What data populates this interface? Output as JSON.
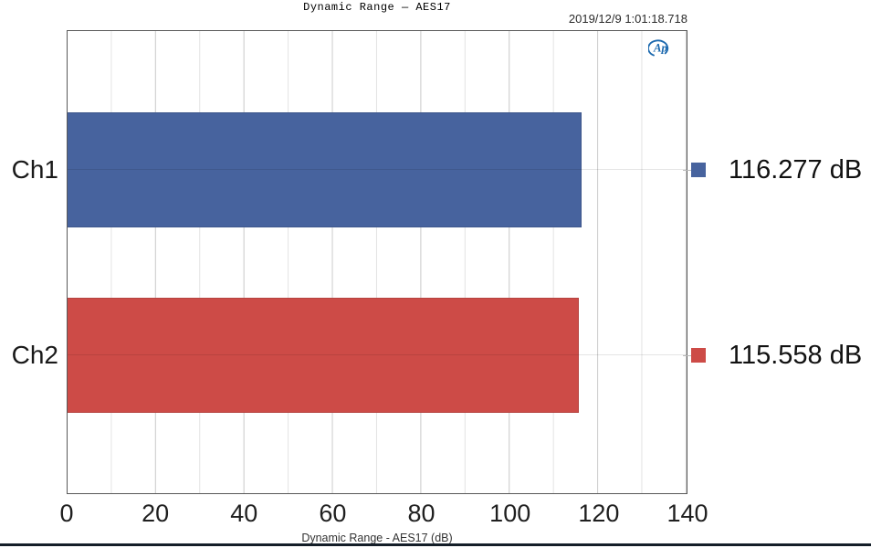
{
  "window": {
    "timestamp": "2019/12/9 1:01:18.718"
  },
  "chart_data": {
    "type": "bar",
    "orientation": "horizontal",
    "title": "Dynamic Range — AES17",
    "xlabel": "Dynamic Range - AES17 (dB)",
    "categories": [
      "Ch1",
      "Ch2"
    ],
    "values": [
      116.277,
      115.558
    ],
    "value_labels": [
      "116.277 dB",
      "115.558 dB"
    ],
    "series_colors": [
      "#47639E",
      "#CD4B47"
    ],
    "series_border_colors": [
      "#3E578C",
      "#B54340"
    ],
    "xlim": [
      0,
      140
    ],
    "x_ticks": [
      0,
      20,
      40,
      60,
      80,
      100,
      120,
      140
    ],
    "minor_tick_step": 10,
    "grid": "on",
    "legend_position": "right",
    "logo": "ap-logo"
  },
  "colors": {
    "accent_blue": "#47639E",
    "accent_red": "#CD4B47",
    "logo_blue": "#1C69AE",
    "plot_border": "#595959",
    "grid_major": "#CFCFCF",
    "grid_minor": "#E3E3E3",
    "bottom_bar": "#141E28"
  }
}
